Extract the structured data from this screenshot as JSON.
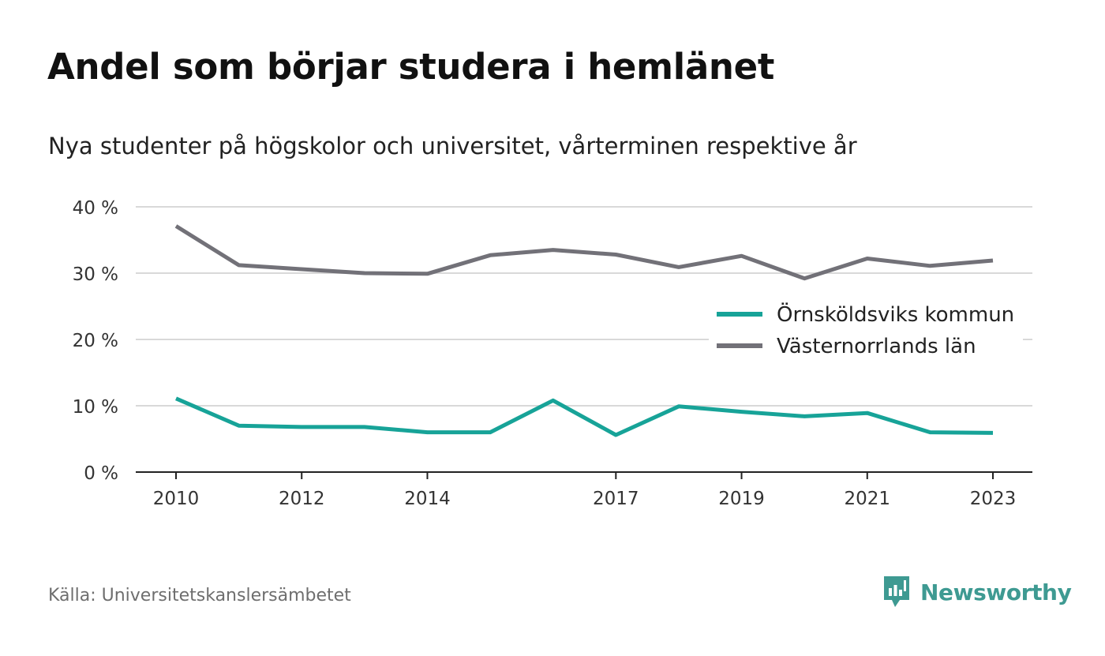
{
  "title": "Andel som börjar studera i hemlänet",
  "subtitle": "Nya studenter på högskolor och universitet, vårterminen respektive år",
  "source": "Källa: Universitetskanslersämbetet",
  "brand": {
    "name": "Newsworthy",
    "color": "#3e9a92",
    "icon": "newsworthy-logo-icon"
  },
  "chart_data": {
    "type": "line",
    "x": [
      2010,
      2011,
      2012,
      2013,
      2014,
      2015,
      2016,
      2017,
      2018,
      2019,
      2020,
      2021,
      2022,
      2023
    ],
    "x_tick_labels": [
      "2010",
      "2012",
      "2014",
      "2017",
      "2019",
      "2021",
      "2023"
    ],
    "y_tick_values": [
      0,
      10,
      20,
      30,
      40
    ],
    "y_tick_labels": [
      "0 %",
      "10 %",
      "20 %",
      "30 %",
      "40 %"
    ],
    "ylim": [
      0,
      40
    ],
    "grid": true,
    "legend_position": "right",
    "series": [
      {
        "name": "Örnsköldsviks kommun",
        "color": "#17a398",
        "values": [
          11.1,
          7.0,
          6.8,
          6.8,
          6.0,
          6.0,
          10.8,
          5.6,
          9.9,
          9.1,
          8.4,
          8.9,
          6.0,
          5.9
        ]
      },
      {
        "name": "Västernorrlands län",
        "color": "#727178",
        "values": [
          37.1,
          31.2,
          30.6,
          30.0,
          29.9,
          32.7,
          33.5,
          32.8,
          30.9,
          32.6,
          29.2,
          32.2,
          31.1,
          31.9
        ]
      }
    ]
  }
}
